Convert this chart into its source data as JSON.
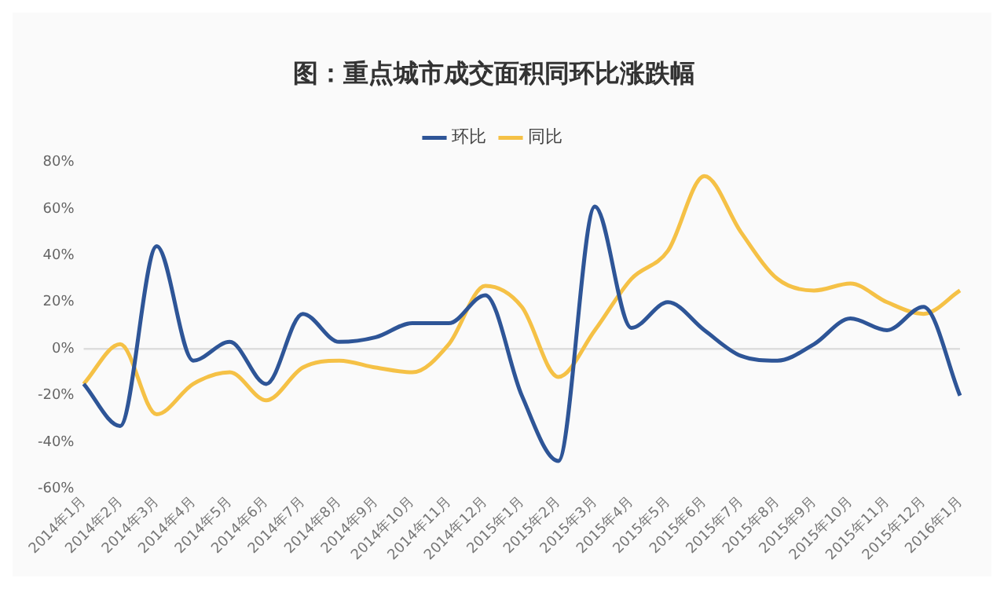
{
  "chart_data": {
    "type": "line",
    "title": "图：重点城市成交面积同环比涨跌幅",
    "categories": [
      "2014年1月",
      "2014年2月",
      "2014年3月",
      "2014年4月",
      "2014年5月",
      "2014年6月",
      "2014年7月",
      "2014年8月",
      "2014年9月",
      "2014年10月",
      "2014年11月",
      "2014年12月",
      "2015年1月",
      "2015年2月",
      "2015年3月",
      "2015年4月",
      "2015年5月",
      "2015年6月",
      "2015年7月",
      "2015年8月",
      "2015年9月",
      "2015年10月",
      "2015年11月",
      "2015年12月",
      "2016年1月"
    ],
    "series": [
      {
        "name": "环比",
        "color": "#2e5597",
        "values": [
          -15,
          -33,
          44,
          -5,
          3,
          -15,
          15,
          3,
          5,
          11,
          11,
          23,
          -20,
          -48,
          61,
          9,
          20,
          8,
          -3,
          -5,
          2,
          13,
          8,
          18,
          -20
        ]
      },
      {
        "name": "同比",
        "color": "#f5c146",
        "values": [
          -15,
          2,
          -28,
          -15,
          -10,
          -22,
          -8,
          -5,
          -8,
          -10,
          2,
          27,
          18,
          -12,
          8,
          30,
          42,
          74,
          50,
          30,
          25,
          28,
          20,
          15,
          25
        ]
      }
    ],
    "ylim": [
      -60,
      80
    ],
    "yticks": [
      {
        "value": -60,
        "label": "-60%"
      },
      {
        "value": -40,
        "label": "-40%"
      },
      {
        "value": -20,
        "label": "-20%"
      },
      {
        "value": 0,
        "label": "0%"
      },
      {
        "value": 20,
        "label": "20%"
      },
      {
        "value": 40,
        "label": "40%"
      },
      {
        "value": 60,
        "label": "60%"
      },
      {
        "value": 80,
        "label": "80%"
      }
    ],
    "ref_lines": [
      {
        "axis": "y",
        "value": 0,
        "color": "#dddddd"
      }
    ],
    "legend": "top",
    "marker": "none",
    "line_style": "solid",
    "grid": false
  }
}
